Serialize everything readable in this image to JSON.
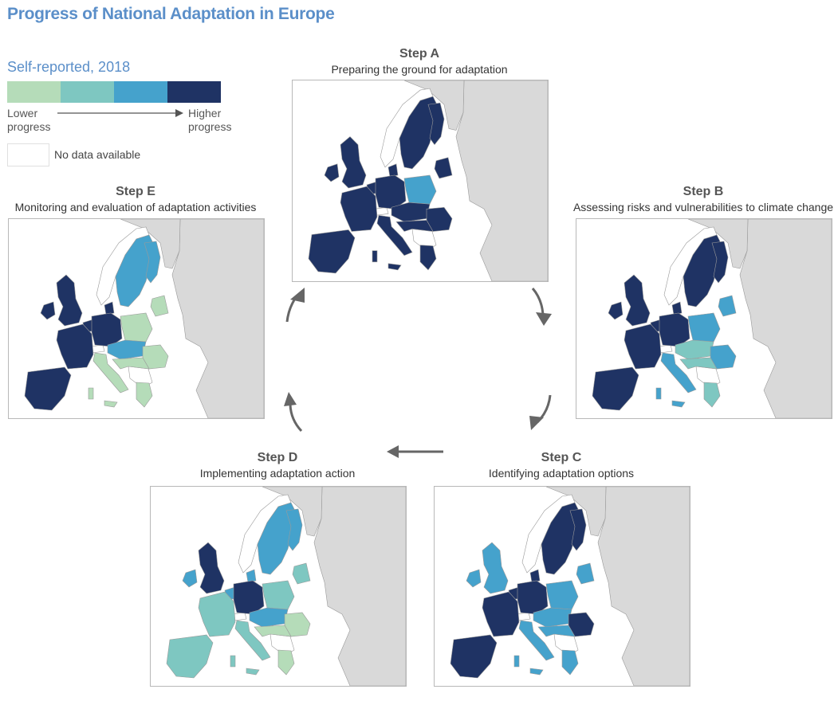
{
  "title": "Progress of National Adaptation in Europe",
  "legend": {
    "title": "Self-reported, 2018",
    "colors": [
      "#b5dcb9",
      "#7ec7c1",
      "#45a2cc",
      "#1f3364"
    ],
    "lower_label": "Lower progress",
    "higher_label": "Higher progress",
    "no_data_label": "No data available",
    "no_data_color": "#ffffff"
  },
  "steps": {
    "a": {
      "label": "Step A",
      "description": "Preparing the ground for adaptation"
    },
    "b": {
      "label": "Step B",
      "description": "Assessing risks and vulnerabilities to climate change"
    },
    "c": {
      "label": "Step C",
      "description": "Identifying adaptation options"
    },
    "d": {
      "label": "Step D",
      "description": "Implementing adaptation action"
    },
    "e": {
      "label": "Step E",
      "description": "Monitoring and evaluation of adaptation activities"
    }
  },
  "map_colors": {
    "sea": "#ffffff",
    "non_eu_land": "#d9d9d9",
    "border": "#9a9a9a"
  },
  "maps": {
    "a": {
      "iberia": 4,
      "france": 4,
      "uk": 4,
      "ireland": 4,
      "benelux": 4,
      "germany": 4,
      "poland": 3,
      "nordic": 4,
      "baltics": 4,
      "central": 4,
      "italy": 4,
      "balkans": 4,
      "greece": 4,
      "romania": 4,
      "denmark": 4
    },
    "b": {
      "iberia": 4,
      "france": 4,
      "uk": 4,
      "ireland": 4,
      "benelux": 4,
      "germany": 4,
      "poland": 3,
      "nordic": 4,
      "baltics": 3,
      "central": 2,
      "italy": 3,
      "balkans": 2,
      "greece": 2,
      "romania": 3,
      "denmark": 4
    },
    "c": {
      "iberia": 4,
      "france": 4,
      "uk": 3,
      "ireland": 3,
      "benelux": 4,
      "germany": 4,
      "poland": 3,
      "nordic": 4,
      "baltics": 3,
      "central": 3,
      "italy": 3,
      "balkans": 3,
      "greece": 3,
      "romania": 4,
      "denmark": 4
    },
    "d": {
      "iberia": 2,
      "france": 2,
      "uk": 4,
      "ireland": 3,
      "benelux": 3,
      "germany": 4,
      "poland": 2,
      "nordic": 3,
      "baltics": 2,
      "central": 3,
      "italy": 2,
      "balkans": 1,
      "greece": 1,
      "romania": 1,
      "denmark": 3
    },
    "e": {
      "iberia": 4,
      "france": 4,
      "uk": 4,
      "ireland": 4,
      "benelux": 4,
      "germany": 4,
      "poland": 1,
      "nordic": 3,
      "baltics": 1,
      "central": 3,
      "italy": 1,
      "balkans": 1,
      "greece": 1,
      "romania": 1,
      "denmark": 4
    }
  }
}
